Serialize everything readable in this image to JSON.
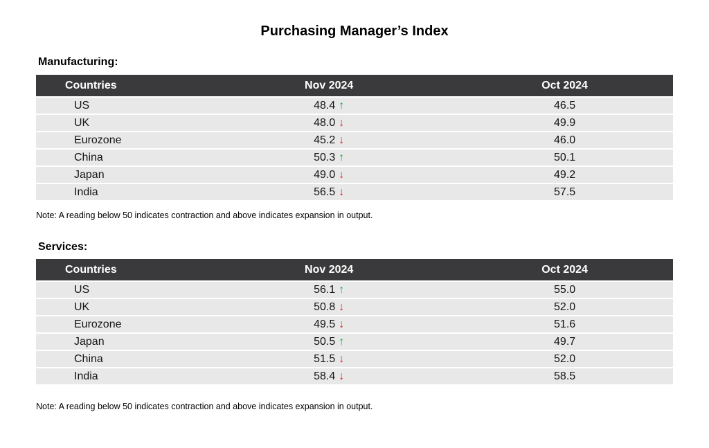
{
  "page": {
    "title": "Purchasing Manager’s Index"
  },
  "colors": {
    "header_bg": "#3a3a3c",
    "header_text": "#ffffff",
    "row_bg": "#e8e8e8",
    "row_divider": "#ffffff",
    "up_green": "#12b13e",
    "down_red": "#e12323",
    "text": "#141414"
  },
  "tables": [
    {
      "section_label": "Manufacturing:",
      "columns": [
        "Countries",
        "Nov 2024",
        "Oct 2024"
      ],
      "rows": [
        {
          "country": "US",
          "nov": "48.4",
          "arrow": "↑",
          "trend": "up",
          "oct": "46.5"
        },
        {
          "country": "UK",
          "nov": "48.0",
          "arrow": "↓",
          "trend": "down",
          "oct": "49.9"
        },
        {
          "country": "Eurozone",
          "nov": "45.2",
          "arrow": "↓",
          "trend": "down",
          "oct": "46.0"
        },
        {
          "country": "China",
          "nov": "50.3",
          "arrow": "↑",
          "trend": "up",
          "oct": "50.1"
        },
        {
          "country": "Japan",
          "nov": "49.0",
          "arrow": "↓",
          "trend": "down",
          "oct": "49.2"
        },
        {
          "country": "India",
          "nov": "56.5",
          "arrow": "↓",
          "trend": "down",
          "oct": "57.5"
        }
      ],
      "note": "Note: A reading below 50 indicates contraction and above indicates expansion in output."
    },
    {
      "section_label": "Services:",
      "columns": [
        "Countries",
        "Nov 2024",
        "Oct 2024"
      ],
      "rows": [
        {
          "country": "US",
          "nov": "56.1",
          "arrow": "↑",
          "trend": "up",
          "oct": "55.0"
        },
        {
          "country": "UK",
          "nov": "50.8",
          "arrow": "↓",
          "trend": "down",
          "oct": "52.0"
        },
        {
          "country": "Eurozone",
          "nov": "49.5",
          "arrow": "↓",
          "trend": "down",
          "oct": "51.6"
        },
        {
          "country": "Japan",
          "nov": "50.5",
          "arrow": "↑",
          "trend": "up",
          "oct": "49.7"
        },
        {
          "country": "China",
          "nov": "51.5",
          "arrow": "↓",
          "trend": "down",
          "oct": "52.0"
        },
        {
          "country": "India",
          "nov": "58.4",
          "arrow": "↓",
          "trend": "down",
          "oct": "58.5"
        }
      ],
      "note": "Note: A reading below 50 indicates contraction and above indicates expansion in output."
    }
  ]
}
